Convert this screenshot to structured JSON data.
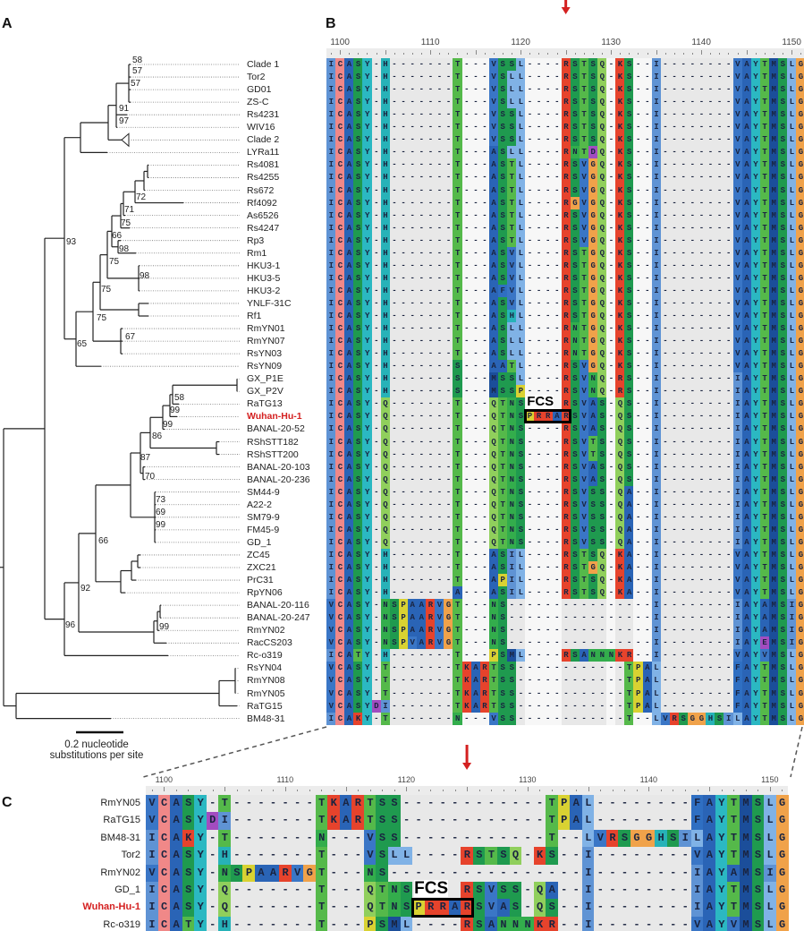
{
  "panels": {
    "a": "A",
    "b": "B",
    "c": "C"
  },
  "scale_bar": {
    "line1": "0.2 nucleotide",
    "line2": "substitutions per site"
  },
  "fcs_label": "FCS",
  "ruler": {
    "start": 1100,
    "labels": [
      "1100",
      "1110",
      "1120",
      "1130",
      "1140",
      "1150"
    ]
  },
  "highlight_color": "#d42020",
  "bootstrap": [
    "58",
    "57",
    "57",
    "91",
    "97",
    "72",
    "71",
    "75",
    "66",
    "98",
    "75",
    "98",
    "75",
    "75",
    "67",
    "65",
    "93",
    "58",
    "99",
    "99",
    "86",
    "87",
    "70",
    "73",
    "69",
    "99",
    "66",
    "92",
    "99",
    "96"
  ],
  "alignment": {
    "rows": [
      {
        "name": "Clade 1",
        "seq": "ICASY-H-------T---VSSL----RSTSQ-KS--I--------VAYTMSLG"
      },
      {
        "name": "Tor2",
        "seq": "ICASY-H-------T---VSLL----RSTSQ-KS--I--------VAYTMSLG"
      },
      {
        "name": "GD01",
        "seq": "ICASY-H-------T---VSLL----RSTSQ-KS--I--------VAYTMSLG"
      },
      {
        "name": "ZS-C",
        "seq": "ICASY-H-------T---VSLL----RSTSQ-KS--I--------VAYTMSLG"
      },
      {
        "name": "Rs4231",
        "seq": "ICASY-H-------T---VSSL----RSTSQ-KS--I--------VAYTMSLG"
      },
      {
        "name": "WIV16",
        "seq": "ICASY-H-------T---VSSL----RSTSQ-KS--I--------VAYTMSLG"
      },
      {
        "name": "Clade 2",
        "seq": "ICASY-H-------T---VSSL----RSTSQ-KS--I--------VAYTMSLG"
      },
      {
        "name": "LYRa11",
        "seq": "ICASY-H-------T---ASLL----RNTDQ-KS--I--------VAYTMSLG"
      },
      {
        "name": "Rs4081",
        "seq": "ICASY-H-------T---ASTL----RSVGQ-KS--I--------VAYTMSLG"
      },
      {
        "name": "Rs4255",
        "seq": "ICASY-H-------T---ASTL----RSVGQ-KS--I--------VAYTMSLG"
      },
      {
        "name": "Rs672",
        "seq": "ICASY-H-------T---ASTL----RSVGQ-KS--I--------VAYTMSLG"
      },
      {
        "name": "Rf4092",
        "seq": "ICASY-H-------T---ASTL----RGVGQ-KS--I--------VAYTMSLG"
      },
      {
        "name": "As6526",
        "seq": "ICASY-H-------T---ASTL----RSVGQ-KS--I--------VAYTMSLG"
      },
      {
        "name": "Rs4247",
        "seq": "ICASY-H-------T---ASTL----RSVGQ-KS--I--------VAYTMSLG"
      },
      {
        "name": "Rp3",
        "seq": "ICASY-H-------T---ASTL----RSVGQ-KS--I--------VAYTMSLG"
      },
      {
        "name": "Rm1",
        "seq": "ICASY-H-------T---ASVL----RSTGQ-KS--I--------VAYTMSLG"
      },
      {
        "name": "HKU3-1",
        "seq": "ICASY-H-------T---ASVL----RSTGQ-KS--I--------VAYTMSLG"
      },
      {
        "name": "HKU3-5",
        "seq": "ICASY-H-------T---ASVL----RSTGQ-KS--I--------VAYTMSLG"
      },
      {
        "name": "HKU3-2",
        "seq": "ICASY-H-------T---AFVL----RSTGQ-KS--I--------VAYTMSLG"
      },
      {
        "name": "YNLF-31C",
        "seq": "ICASY-H-------T---ASVL----RSTGQ-KS--I--------VAYTMSLG"
      },
      {
        "name": "Rf1",
        "seq": "ICASY-H-------T---ASHL----RSTGQ-KS--I--------VAYTMSLG"
      },
      {
        "name": "RmYN01",
        "seq": "ICASY-H-------T---ASLL----RNTGQ-KS--I--------VAYTMSLG"
      },
      {
        "name": "RmYN07",
        "seq": "ICASY-H-------T---ASLL----RNTGQ-KS--I--------VAYTMSLG"
      },
      {
        "name": "RsYN03",
        "seq": "ICASY-H-------T---ASLL----RNTGQ-KS--I--------VAYTMSLG"
      },
      {
        "name": "RsYN09",
        "seq": "ICASY-H-------S---AATL----RSVGQ-KS--I--------VAYTMSLG"
      },
      {
        "name": "GX_P1E",
        "seq": "ICASY-H-------S---MSSL----RSVNQ-RS--I--------IAYTMSLG"
      },
      {
        "name": "GX_P2V",
        "seq": "ICASY-H-------S---MSSP----RSVNQ-RS--I--------IAYTMSLG"
      },
      {
        "name": "RaTG13",
        "seq": "ICASY-Q-------T---QTNS----RSVAS-QS--I--------IAYTMSLG"
      },
      {
        "name": "Wuhan-Hu-1",
        "seq": "ICASY-Q-------T---QTNSPRRARSVAS-QS--I--------IAYTMSLG",
        "highlight": true
      },
      {
        "name": "BANAL-20-52",
        "seq": "ICASY-Q-------T---QTNS----RSVAS-QS--I--------IAYTMSLG"
      },
      {
        "name": "RShSTT182",
        "seq": "ICASY-Q-------T---QTNS----RSVTS-QS--I--------IAYTMSLG"
      },
      {
        "name": "RShSTT200",
        "seq": "ICASY-Q-------T---QTNS----RSVTS-QS--I--------IAYTMSLG"
      },
      {
        "name": "BANAL-20-103",
        "seq": "ICASY-Q-------T---QTNS----RSVAS-QS--I--------IAYTMSLG"
      },
      {
        "name": "BANAL-20-236",
        "seq": "ICASY-Q-------T---QTNS----RSVAS-QS--I--------IAYTMSLG"
      },
      {
        "name": "SM44-9",
        "seq": "ICASY-Q-------T---QTNS----RSVSS-QA--I--------IAYTMSLG"
      },
      {
        "name": "A22-2",
        "seq": "ICASY-Q-------T---QTNS----RSVSS-QA--I--------IAYTMSLG"
      },
      {
        "name": "SM79-9",
        "seq": "ICASY-Q-------T---QTNS----RSVSS-QA--I--------IAYTMSLG"
      },
      {
        "name": "FM45-9",
        "seq": "ICASY-Q-------T---QTNS----RSVSS-QA--I--------IAYTMSLG"
      },
      {
        "name": "GD_1",
        "seq": "ICASY-Q-------T---QTNS----RSVSS-QA--I--------IAYTMSLG"
      },
      {
        "name": "ZC45",
        "seq": "ICASY-H-------T---ASIL----RSTSQ-KA--I--------VAYTMSLG"
      },
      {
        "name": "ZXC21",
        "seq": "ICASY-H-------T---ASIL----RSTGQ-KA--I--------VAYTMSLG"
      },
      {
        "name": "PrC31",
        "seq": "ICASY-H-------T---APIL----RSTSQ-KA--I--------VAYTMSLG"
      },
      {
        "name": "RpYN06",
        "seq": "ICASY-H-------A---ASIL----RSTSQ-KA--I--------VAYTMSLG"
      },
      {
        "name": "BANAL-20-116",
        "seq": "VCASY-NSPAARVGT---NS----------------I--------IAYAMSIG"
      },
      {
        "name": "BANAL-20-247",
        "seq": "VCASY-NSPAARVGT---NS----------------I--------IAYAMSIG"
      },
      {
        "name": "RmYN02",
        "seq": "VCASY-NSPAARVGT---NS----------------I--------IAYAMSIG"
      },
      {
        "name": "RacCS203",
        "seq": "VCASY-NSPVARVGT---NS----------------I--------IAYEMSIG"
      },
      {
        "name": "Rc-o319",
        "seq": "ICATY-H-------T---PSML----RSANNNKR--I--------VAYVMSLG"
      },
      {
        "name": "RsYN04",
        "seq": "VCASY-T-------TKARTSS------------TPAL--------FAYTMSLG"
      },
      {
        "name": "RmYN08",
        "seq": "VCASY-T-------TKARTSS------------TPAL--------FAYTMSLG"
      },
      {
        "name": "RmYN05",
        "seq": "VCASY-T-------TKARTSS------------TPAL--------FAYTMSLG"
      },
      {
        "name": "RaTG15",
        "seq": "VCASYDI-------TKARTSS------------TPAL--------FAYTMSLG"
      },
      {
        "name": "BM48-31",
        "seq": "ICAKY-T-------N---VSS------------T--LVRSGGHSILAYTMSLG"
      }
    ]
  },
  "zoom_rows": [
    {
      "name": "RmYN05",
      "seq": "VCASY-T-------TKARTSS------------TPAL--------FAYTMSLG"
    },
    {
      "name": "RaTG15",
      "seq": "VCASYDI-------TKARTSS------------TPAL--------FAYTMSLG"
    },
    {
      "name": "BM48-31",
      "seq": "ICAKY-T-------N---VSS------------T--LVRSGGHSILAYTMSLG"
    },
    {
      "name": "Tor2",
      "seq": "ICASY-H-------T---VSLL----RSTSQ-KS--I--------VAYTMSLG"
    },
    {
      "name": "RmYN02",
      "seq": "VCASY-NSPAARVGT---NS----------------I--------IAYAMSIG"
    },
    {
      "name": "GD_1",
      "seq": "ICASY-Q-------T---QTNS----RSVSS-QA--I--------IAYTMSLG"
    },
    {
      "name": "Wuhan-Hu-1",
      "seq": "ICASY-Q-------T---QTNSPRRARSVAS-QS--I--------IAYTMSLG",
      "highlight": true
    },
    {
      "name": "Rc-o319",
      "seq": "ICATY-H-------T---PSML----RSANNNKR--I--------VAYVMSLG"
    }
  ],
  "residue_colors": {
    "I": "#5f93d4",
    "L": "#80b2e6",
    "V": "#3a76c6",
    "A": "#2a64b6",
    "M": "#1b4e9a",
    "F": "#2f6fc2",
    "C": "#f08888",
    "S": "#1f9a4f",
    "T": "#55b94a",
    "N": "#33ad4c",
    "Q": "#90cf5c",
    "H": "#27b2b8",
    "Y": "#2bb8c2",
    "K": "#e6432c",
    "R": "#e6432c",
    "G": "#f0a24a",
    "P": "#d9d232",
    "D": "#a24cc0",
    "E": "#a24cc0",
    "-": "#e8e8e8"
  }
}
